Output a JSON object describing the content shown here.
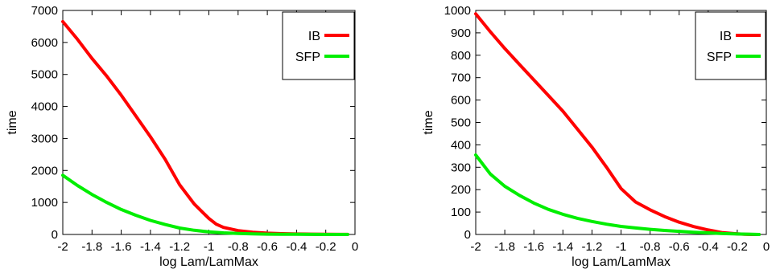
{
  "chart_data": [
    {
      "type": "line",
      "title": "",
      "xlabel": "log Lam/LamMax",
      "ylabel": "time",
      "xlim": [
        -2,
        0
      ],
      "ylim": [
        0,
        7000
      ],
      "xticks": [
        "-2",
        "-1.8",
        "-1.6",
        "-1.4",
        "-1.2",
        "-1",
        "-0.8",
        "-0.6",
        "-0.4",
        "-0.2",
        "0"
      ],
      "yticks": [
        "0",
        "1000",
        "2000",
        "3000",
        "4000",
        "5000",
        "6000",
        "7000"
      ],
      "grid": false,
      "legend_position": "top-right",
      "series": [
        {
          "name": "IB",
          "color": "#ff0000",
          "x": [
            -2,
            -1.9,
            -1.8,
            -1.7,
            -1.6,
            -1.5,
            -1.4,
            -1.3,
            -1.2,
            -1.1,
            -1.0,
            -0.95,
            -0.9,
            -0.8,
            -0.7,
            -0.6,
            -0.5,
            -0.4,
            -0.3,
            -0.2,
            -0.1,
            -0.05
          ],
          "y": [
            6650,
            6100,
            5500,
            4950,
            4350,
            3700,
            3050,
            2350,
            1550,
            950,
            500,
            320,
            220,
            120,
            70,
            40,
            25,
            15,
            10,
            5,
            3,
            2
          ]
        },
        {
          "name": "SFP",
          "color": "#00ee00",
          "x": [
            -2,
            -1.9,
            -1.8,
            -1.7,
            -1.6,
            -1.5,
            -1.4,
            -1.3,
            -1.2,
            -1.1,
            -1.0,
            -0.9,
            -0.8,
            -0.7,
            -0.6,
            -0.5,
            -0.4,
            -0.3,
            -0.2,
            -0.1,
            -0.05
          ],
          "y": [
            1850,
            1530,
            1250,
            1000,
            780,
            600,
            440,
            310,
            200,
            130,
            80,
            50,
            30,
            18,
            10,
            6,
            4,
            2,
            1,
            0,
            0
          ]
        }
      ]
    },
    {
      "type": "line",
      "title": "",
      "xlabel": "log Lam/LamMax",
      "ylabel": "time",
      "xlim": [
        -2,
        0
      ],
      "ylim": [
        0,
        1000
      ],
      "xticks": [
        "-2",
        "-1.8",
        "-1.6",
        "-1.4",
        "-1.2",
        "-1",
        "-0.8",
        "-0.6",
        "-0.4",
        "-0.2",
        "0"
      ],
      "yticks": [
        "0",
        "100",
        "200",
        "300",
        "400",
        "500",
        "600",
        "700",
        "800",
        "900",
        "1000"
      ],
      "grid": false,
      "legend_position": "top-right",
      "series": [
        {
          "name": "IB",
          "color": "#ff0000",
          "x": [
            -2,
            -1.9,
            -1.8,
            -1.7,
            -1.6,
            -1.5,
            -1.4,
            -1.3,
            -1.2,
            -1.1,
            -1.0,
            -0.9,
            -0.8,
            -0.7,
            -0.6,
            -0.5,
            -0.4,
            -0.3,
            -0.2,
            -0.15,
            -0.1,
            -0.05
          ],
          "y": [
            985,
            905,
            830,
            760,
            690,
            620,
            550,
            470,
            390,
            300,
            205,
            145,
            110,
            80,
            55,
            35,
            20,
            8,
            3,
            1,
            0,
            0
          ]
        },
        {
          "name": "SFP",
          "color": "#00ee00",
          "x": [
            -2,
            -1.9,
            -1.8,
            -1.7,
            -1.6,
            -1.5,
            -1.4,
            -1.3,
            -1.2,
            -1.1,
            -1.0,
            -0.9,
            -0.8,
            -0.7,
            -0.6,
            -0.5,
            -0.4,
            -0.3,
            -0.2,
            -0.1,
            -0.05
          ],
          "y": [
            355,
            270,
            215,
            175,
            140,
            112,
            90,
            72,
            58,
            46,
            36,
            29,
            23,
            18,
            14,
            10,
            7,
            4,
            2,
            1,
            0
          ]
        }
      ]
    }
  ]
}
